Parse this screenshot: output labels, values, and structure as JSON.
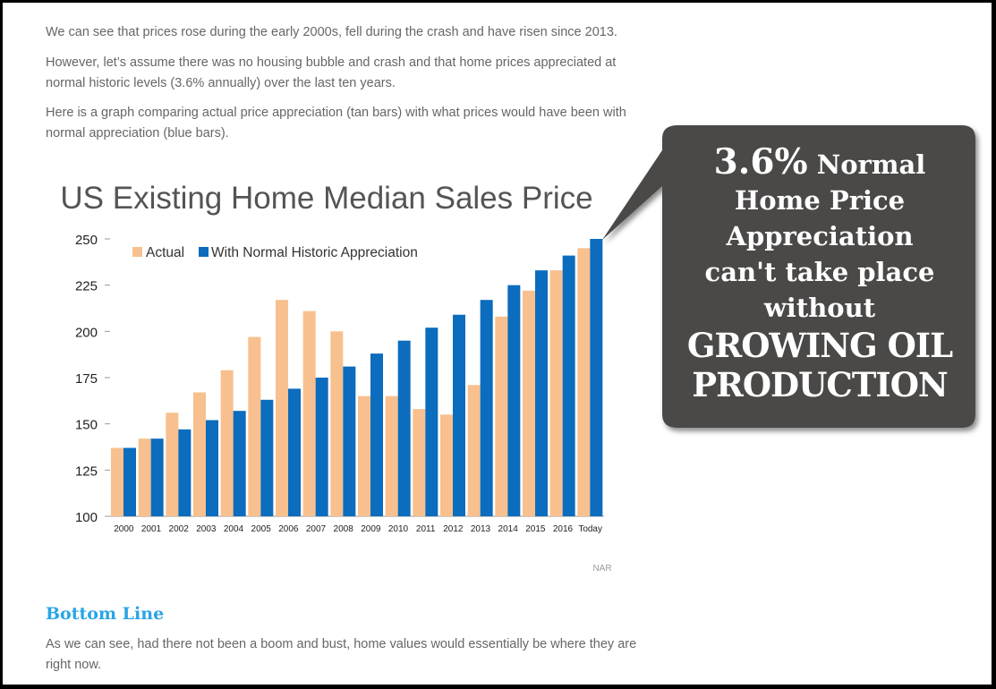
{
  "article": {
    "paragraph1": "We can see that prices rose during the early 2000s, fell during the crash and have risen since 2013.",
    "paragraph2": "However, let’s assume there was no housing bubble and crash and that home prices appreciated at normal historic levels (3.6% annually) over the last ten years.",
    "paragraph3": "Here is a graph comparing actual price appreciation (tan bars) with what prices would have been with normal appreciation (blue bars).",
    "bottom_heading": "Bottom Line",
    "bottom_text": "As we can see, had there not been a boom and bust, home values would essentially be where they are right now."
  },
  "callout": {
    "line1_pct": "3.6%",
    "line1_rest": " Normal",
    "line2": "Home Price",
    "line3": "Appreciation",
    "line4": "can't take place",
    "line5": "without",
    "line6": "GROWING OIL",
    "line7": "PRODUCTION"
  },
  "colors": {
    "actual": "#f7c08e",
    "normal": "#0c6cbd",
    "callout_bg": "#4b4946",
    "heading_blue": "#2aa4e6"
  },
  "chart_data": {
    "type": "bar",
    "title": "US Existing Home Median Sales Price",
    "source": "NAR",
    "categories": [
      "2000",
      "2001",
      "2002",
      "2003",
      "2004",
      "2005",
      "2006",
      "2007",
      "2008",
      "2009",
      "2010",
      "2011",
      "2012",
      "2013",
      "2014",
      "2015",
      "2016",
      "Today"
    ],
    "series": [
      {
        "name": "Actual",
        "values": [
          137,
          142,
          156,
          167,
          179,
          197,
          217,
          211,
          200,
          165,
          165,
          158,
          155,
          171,
          208,
          222,
          233,
          245
        ]
      },
      {
        "name": "With Normal Historic Appreciation",
        "values": [
          137,
          142,
          147,
          152,
          157,
          163,
          169,
          175,
          181,
          188,
          195,
          202,
          209,
          217,
          225,
          233,
          241,
          250
        ]
      }
    ],
    "ylim": [
      100,
      250
    ],
    "yticks": [
      100,
      125,
      150,
      175,
      200,
      225,
      250
    ],
    "legend": "top-left",
    "grid": false
  }
}
